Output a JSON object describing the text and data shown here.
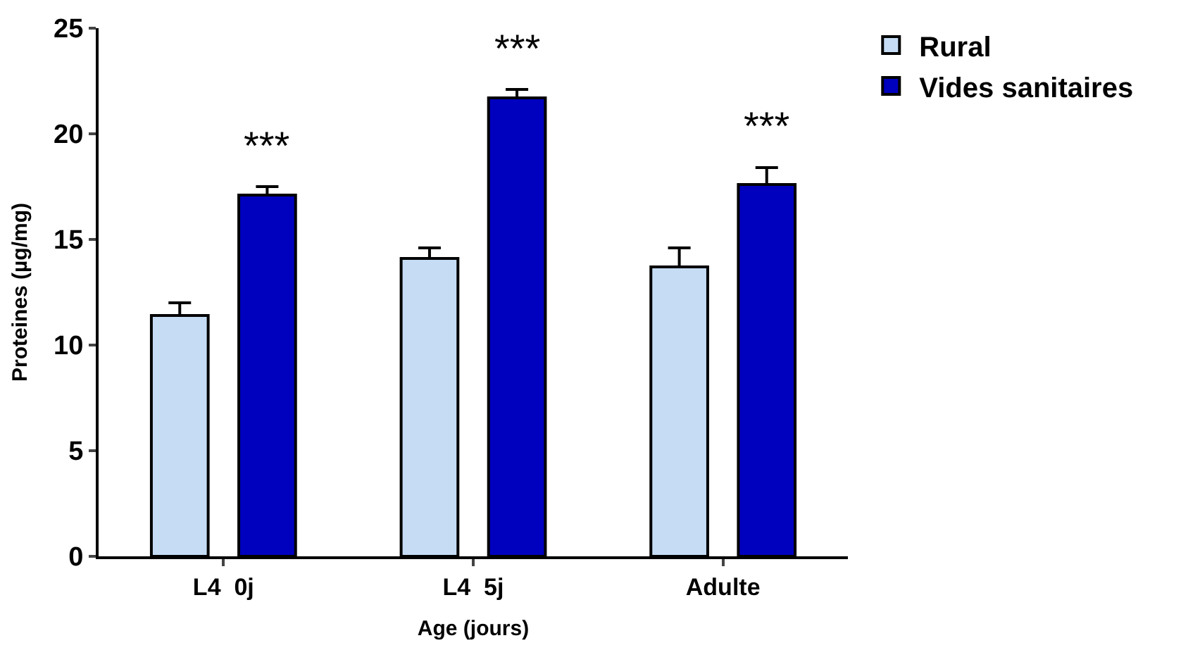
{
  "chart_data": {
    "type": "bar",
    "xlabel": "Age (jours)",
    "ylabel": "Proteines (µg/mg)",
    "categories": [
      "L4  0j",
      "L4  5j",
      "Adulte"
    ],
    "series": [
      {
        "name": "Rural",
        "color": "#c6dcf5",
        "values": [
          11.4,
          14.1,
          13.7
        ],
        "errors": [
          [
            11.4,
            12.0
          ],
          [
            14.1,
            14.6
          ],
          [
            13.7,
            14.6
          ]
        ]
      },
      {
        "name": "Vides sanitaires",
        "color": "#0000bf",
        "values": [
          17.1,
          21.7,
          17.6
        ],
        "errors": [
          [
            17.1,
            17.5
          ],
          [
            21.7,
            22.1
          ],
          [
            17.6,
            18.4
          ]
        ]
      }
    ],
    "annotations": [
      "***",
      "***",
      "***"
    ],
    "ylim": [
      0,
      25
    ],
    "yticks": [
      0,
      5,
      10,
      15,
      20,
      25
    ],
    "legend": "top right"
  }
}
